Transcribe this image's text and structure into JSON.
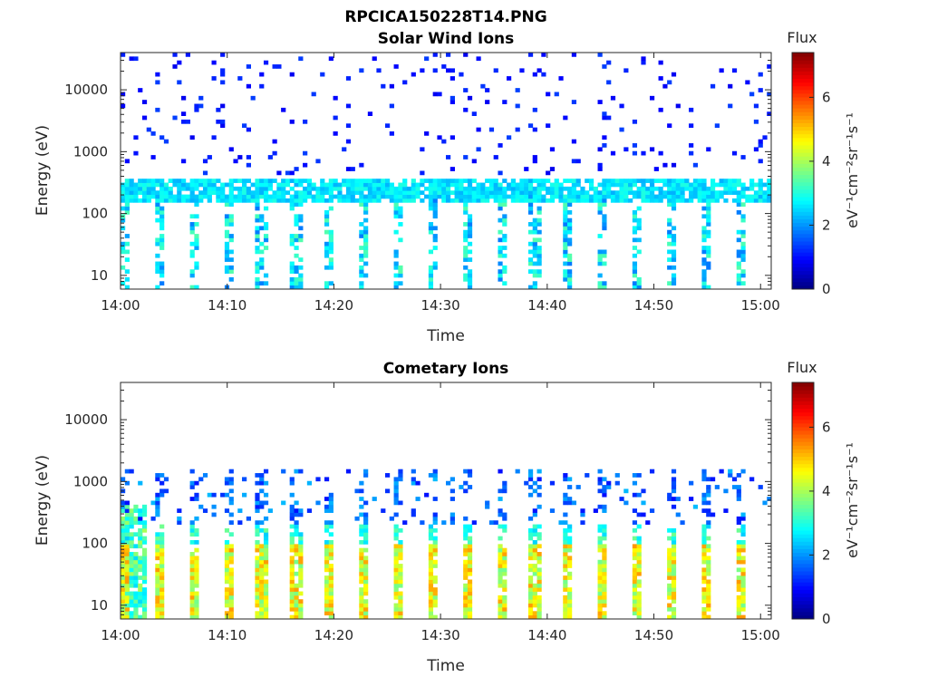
{
  "figure": {
    "title": "RPCICA150228T14.PNG"
  },
  "colorbar": {
    "label": "Flux",
    "unit_label": "eV⁻¹cm⁻²sr⁻¹s⁻¹",
    "range": [
      0,
      7.4
    ],
    "ticks": [
      "0",
      "2",
      "4",
      "6"
    ],
    "tick_values": [
      0,
      2,
      4,
      6
    ],
    "colormap": "jet"
  },
  "chart_data": [
    {
      "type": "heatmap",
      "title": "Solar Wind Ions",
      "xlabel": "Time",
      "ylabel": "Energy (eV)",
      "y_scale": "log",
      "xlim": [
        "14:00",
        "15:01"
      ],
      "ylim": [
        6,
        40000
      ],
      "x_ticks": [
        "14:00",
        "14:10",
        "14:20",
        "14:30",
        "14:40",
        "14:50",
        "15:00"
      ],
      "y_ticks": [
        "10",
        "100",
        "1000",
        "10000"
      ],
      "y_tick_values": [
        10,
        100,
        1000,
        10000
      ],
      "color_range": [
        0,
        7.4
      ],
      "features": {
        "main_band_energy_eV": [
          200,
          350
        ],
        "main_band_flux": 2.6,
        "repeating_vertical_stripes_period_min": 3.2,
        "sparse_high_energy_counts_flux": 1.0
      }
    },
    {
      "type": "heatmap",
      "title": "Cometary Ions",
      "xlabel": "Time",
      "ylabel": "Energy (eV)",
      "y_scale": "log",
      "xlim": [
        "14:00",
        "15:01"
      ],
      "ylim": [
        6,
        40000
      ],
      "x_ticks": [
        "14:00",
        "14:10",
        "14:20",
        "14:30",
        "14:40",
        "14:50",
        "15:00"
      ],
      "y_ticks": [
        "10",
        "100",
        "1000",
        "10000"
      ],
      "y_tick_values": [
        10,
        100,
        1000,
        10000
      ],
      "color_range": [
        0,
        7.4
      ],
      "features": {
        "main_band_energy_eV": [
          6,
          100
        ],
        "main_band_flux": 4.3,
        "peak_flux": 5.6,
        "repeating_vertical_stripes_period_min": 3.2,
        "upper_band_energy_eV": [
          200,
          1500
        ]
      }
    }
  ]
}
